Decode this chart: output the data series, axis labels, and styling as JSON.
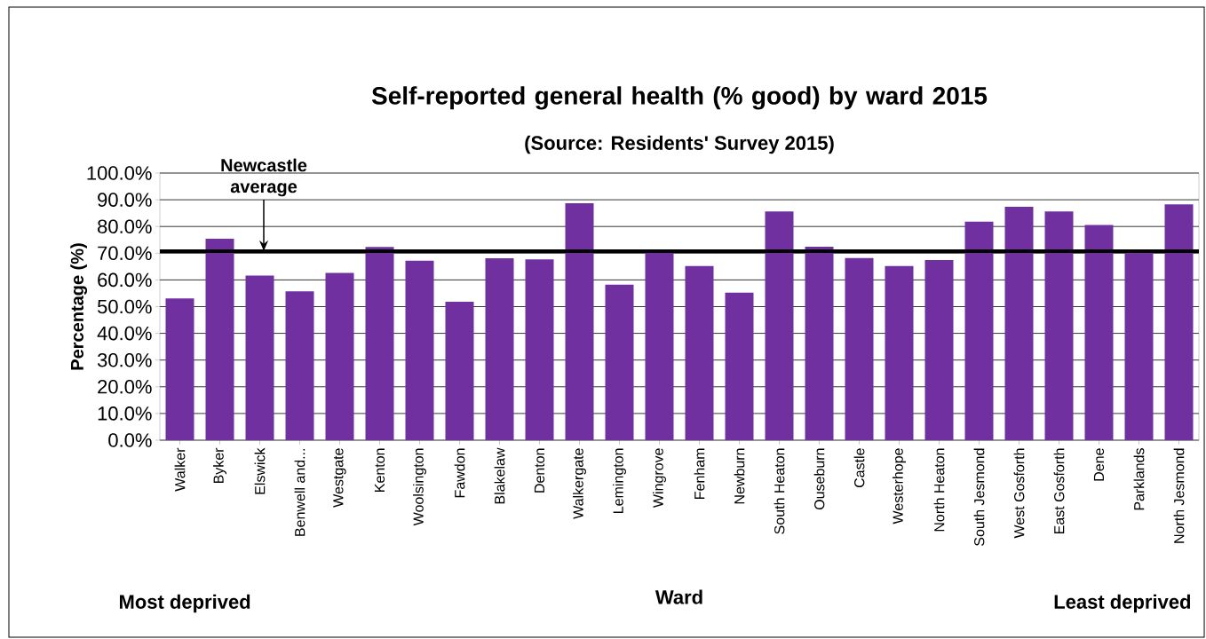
{
  "chart_data": {
    "type": "bar",
    "title": "Self-reported general health (% good) by ward 2015",
    "subtitle": "(Source: Residents' Survey 2015)",
    "xlabel": "Ward",
    "ylabel": "Percentage (%)",
    "categories": [
      "Walker",
      "Byker",
      "Elswick",
      "Benwell and...",
      "Westgate",
      "Kenton",
      "Woolsington",
      "Fawdon",
      "Blakelaw",
      "Denton",
      "Walkergate",
      "Lemington",
      "Wingrove",
      "Fenham",
      "Newburn",
      "South Heaton",
      "Ouseburn",
      "Castle",
      "Westerhope",
      "North Heaton",
      "South Jesmond",
      "West Gosforth",
      "East Gosforth",
      "Dene",
      "Parklands",
      "North Jesmond"
    ],
    "values": [
      53.1,
      75.4,
      61.6,
      55.7,
      62.6,
      72.3,
      67.2,
      51.8,
      68.1,
      67.7,
      88.7,
      58.2,
      71.0,
      65.2,
      55.2,
      85.6,
      72.4,
      68.2,
      65.2,
      67.4,
      81.8,
      87.4,
      85.6,
      80.6,
      70.0,
      88.3
    ],
    "color": "#7030a0",
    "ylim": [
      0,
      100
    ],
    "yticks": [
      {
        "value": 0,
        "label": "0.0%"
      },
      {
        "value": 10,
        "label": "10.0%"
      },
      {
        "value": 20,
        "label": "20.0%"
      },
      {
        "value": 30,
        "label": "30.0%"
      },
      {
        "value": 40,
        "label": "40.0%"
      },
      {
        "value": 50,
        "label": "50.0%"
      },
      {
        "value": 60,
        "label": "60.0%"
      },
      {
        "value": 70,
        "label": "70.0%"
      },
      {
        "value": 80,
        "label": "80.0%"
      },
      {
        "value": 90,
        "label": "90.0%"
      },
      {
        "value": 100,
        "label": "100.0%"
      }
    ],
    "grid": "y",
    "ref_lines": [
      {
        "axis": "y",
        "value": 70.8,
        "label": "Newcastle average",
        "color": "#000000"
      }
    ],
    "annotations": [
      "Most deprived",
      "Least deprived"
    ]
  }
}
